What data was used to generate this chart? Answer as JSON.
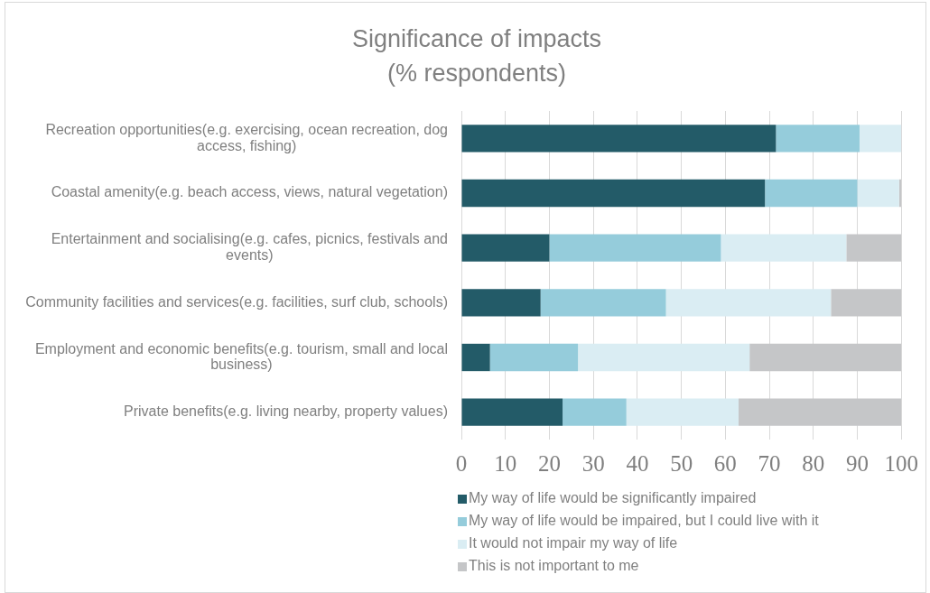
{
  "chart_data": {
    "type": "bar",
    "orientation": "horizontal",
    "stacked": true,
    "title": "Significance of impacts\n(% respondents)",
    "categories": [
      "Recreation opportunities(e.g. exercising, ocean recreation, dog access, fishing)",
      "Coastal amenity(e.g. beach access, views, natural vegetation)",
      "Entertainment and socialising(e.g. cafes, picnics, festivals and events)",
      "Community facilities and services(e.g. facilities, surf club, schools)",
      "Employment and economic benefits(e.g. tourism, small and local business)",
      "Private benefits(e.g. living nearby, property values)"
    ],
    "series": [
      {
        "name": "My way of life would be significantly impaired",
        "color": "#235b68",
        "values": [
          71.5,
          69,
          20,
          18,
          6.5,
          23
        ]
      },
      {
        "name": "My way of life would be impaired, but I could live with it",
        "color": "#95ccdb",
        "values": [
          19,
          21,
          39,
          28.5,
          20,
          14.5
        ]
      },
      {
        "name": "It would not impair my way of life",
        "color": "#daedf3",
        "values": [
          9.5,
          9.5,
          28.5,
          37.5,
          39,
          25.5
        ]
      },
      {
        "name": "This is not important to me",
        "color": "#c5c6c8",
        "values": [
          0,
          0.5,
          12.5,
          16,
          34.5,
          37
        ]
      }
    ],
    "xlim": [
      0,
      100
    ],
    "xticks": [
      0,
      10,
      20,
      30,
      40,
      50,
      60,
      70,
      80,
      90,
      100
    ],
    "grid": "x",
    "legend": "bottom"
  }
}
